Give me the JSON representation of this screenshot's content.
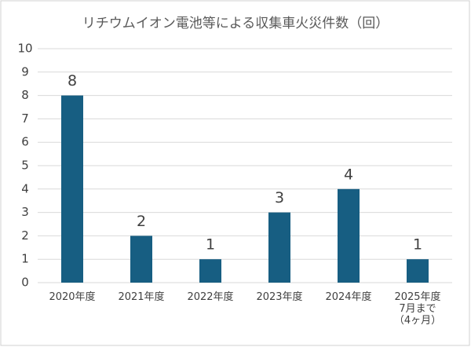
{
  "chart_data": {
    "type": "bar",
    "title": "リチウムイオン電池等による収集車火災件数（回）",
    "categories": [
      "2020年度",
      "2021年度",
      "2022年度",
      "2023年度",
      "2024年度",
      "2025年度\n7月まで\n（4ヶ月）"
    ],
    "values": [
      8,
      2,
      1,
      3,
      4,
      1
    ],
    "color": "#175e82",
    "ylim": [
      0,
      10
    ],
    "yticks": [
      0,
      1,
      2,
      3,
      4,
      5,
      6,
      7,
      8,
      9,
      10
    ],
    "grid": true
  }
}
